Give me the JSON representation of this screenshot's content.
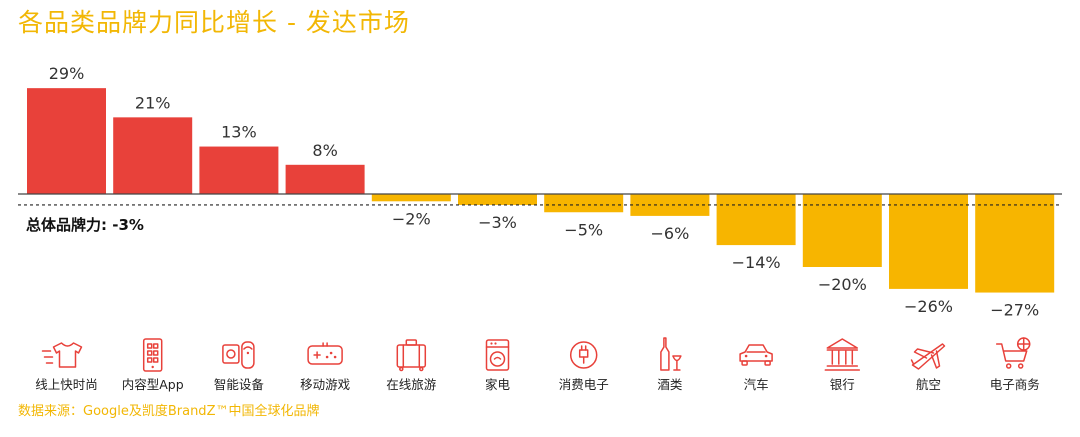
{
  "title": "各品类品牌力同比增长 - 发达市场",
  "source": "数据来源：Google及凯度BrandZ™中国全球化品牌",
  "colors": {
    "positive": "#E8413A",
    "negative": "#F7B500",
    "title": "#F2B705",
    "icon": "#E8413A"
  },
  "chart_data": {
    "type": "bar",
    "title": "各品类品牌力同比增长 - 发达市场",
    "categories": [
      "线上快时尚",
      "内容型App",
      "智能设备",
      "移动游戏",
      "在线旅游",
      "家电",
      "消费电子",
      "酒类",
      "汽车",
      "银行",
      "航空",
      "电子商务"
    ],
    "values": [
      29,
      21,
      13,
      8,
      -2,
      -3,
      -5,
      -6,
      -14,
      -20,
      -26,
      -27
    ],
    "value_labels": [
      "29%",
      "21%",
      "13%",
      "8%",
      "−2%",
      "−3%",
      "−5%",
      "−6%",
      "−14%",
      "−20%",
      "−26%",
      "−27%"
    ],
    "icons": [
      "tshirt-icon",
      "phone-app-icon",
      "smart-device-icon",
      "gamepad-icon",
      "suitcase-icon",
      "washing-machine-icon",
      "power-plug-icon",
      "wine-icon",
      "car-icon",
      "bank-icon",
      "airplane-icon",
      "shopping-cart-icon"
    ],
    "reference_line": {
      "value": -3,
      "label": "总体品牌力: -3%"
    },
    "ylim": [
      -30,
      30
    ]
  }
}
